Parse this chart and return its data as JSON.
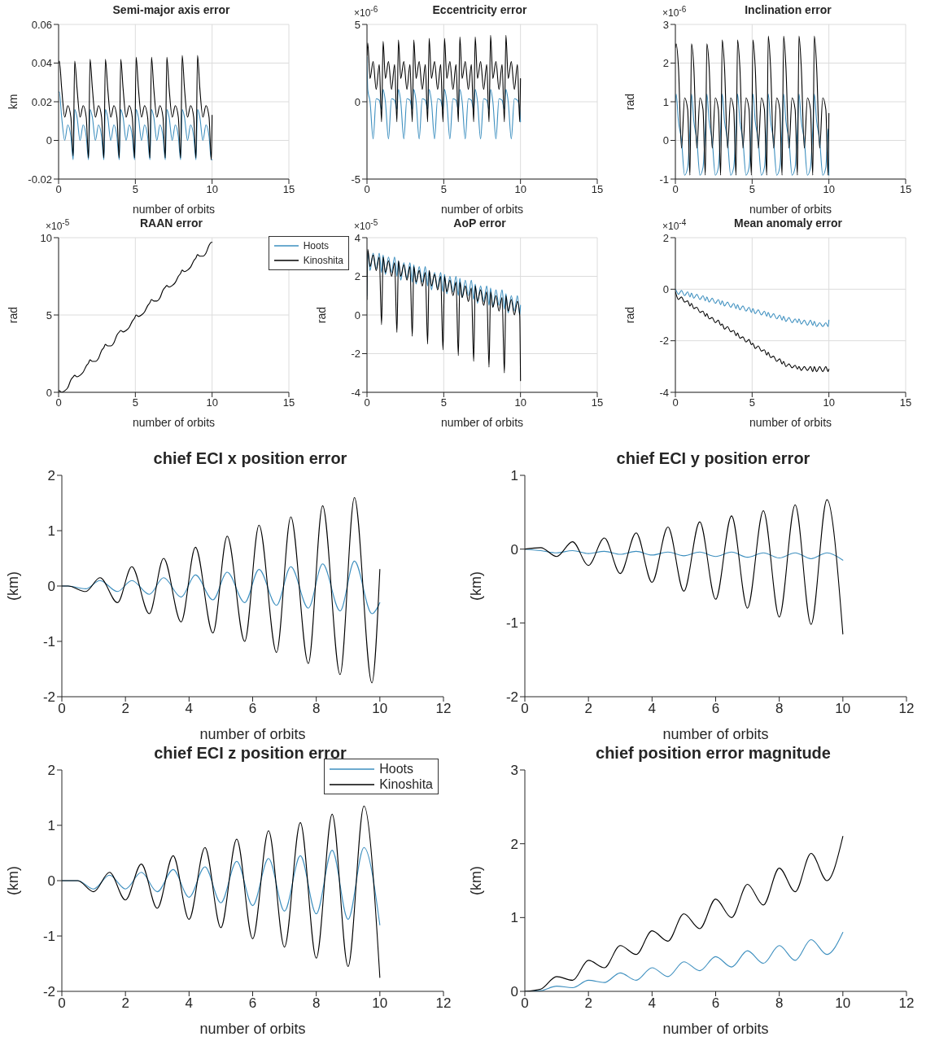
{
  "chart_data": [
    {
      "type": "line",
      "title": "Semi-major axis error",
      "xlabel": "number of orbits",
      "ylabel": "km",
      "xlim": [
        0,
        15
      ],
      "xticks": [
        0,
        5,
        10,
        15
      ],
      "ylim": [
        -0.02,
        0.06
      ],
      "yticks": [
        -0.02,
        0,
        0.02,
        0.04,
        0.06
      ],
      "grid": true,
      "x": [
        0,
        0.05,
        0.2,
        0.4,
        0.6,
        0.8,
        0.95,
        1.05,
        1.2,
        1.4,
        1.6,
        1.8,
        1.95,
        2.05,
        2.2,
        2.4,
        2.6,
        2.8,
        2.95,
        3.05,
        3.2,
        3.4,
        3.6,
        3.8,
        3.95,
        4.05,
        4.2,
        4.4,
        4.6,
        4.8,
        4.95,
        5.05,
        5.2,
        5.4,
        5.6,
        5.8,
        5.95,
        6.05,
        6.2,
        6.4,
        6.6,
        6.8,
        6.95,
        7.05,
        7.2,
        7.4,
        7.6,
        7.8,
        7.95,
        8.05,
        8.2,
        8.4,
        8.6,
        8.8,
        8.95,
        9.05,
        9.2,
        9.4,
        9.6,
        9.8,
        9.95,
        10
      ],
      "series": [
        {
          "color": "#3d8fbf",
          "values": [
            0.025,
            0.025,
            0.012,
            0,
            0.008,
            0.002,
            -0.01,
            0.016,
            0.012,
            0,
            0.008,
            0.002,
            -0.01,
            0.016,
            0.012,
            0,
            0.008,
            0.002,
            -0.01,
            0.016,
            0.012,
            0,
            0.008,
            0.002,
            -0.01,
            0.016,
            0.012,
            0,
            0.008,
            0.002,
            -0.01,
            0.016,
            0.012,
            0,
            0.008,
            0.002,
            -0.01,
            0.016,
            0.012,
            0,
            0.008,
            0.002,
            -0.01,
            0.016,
            0.012,
            0,
            0.008,
            0.002,
            -0.01,
            0.016,
            0.012,
            0,
            0.008,
            0.002,
            -0.01,
            0.016,
            0.012,
            0,
            0.008,
            0.002,
            -0.01,
            -0.01
          ]
        },
        {
          "color": "#000000",
          "values": [
            0.04,
            0.041,
            0.027,
            0.012,
            0.018,
            0.012,
            -0.008,
            0.041,
            0.027,
            0.012,
            0.018,
            0.012,
            -0.009,
            0.042,
            0.027,
            0.012,
            0.018,
            0.012,
            -0.009,
            0.042,
            0.027,
            0.012,
            0.018,
            0.012,
            -0.009,
            0.042,
            0.027,
            0.012,
            0.018,
            0.012,
            -0.009,
            0.043,
            0.027,
            0.012,
            0.018,
            0.012,
            -0.009,
            0.043,
            0.027,
            0.012,
            0.018,
            0.012,
            -0.009,
            0.043,
            0.027,
            0.012,
            0.018,
            0.012,
            -0.009,
            0.044,
            0.027,
            0.012,
            0.018,
            0.012,
            -0.009,
            0.044,
            0.027,
            0.012,
            0.018,
            0.012,
            -0.01,
            0.013
          ]
        }
      ]
    },
    {
      "type": "line",
      "title": "Eccentricity error",
      "xlabel": "number of orbits",
      "annotations": [
        "×10$^{-6}$"
      ],
      "xlim": [
        0,
        15
      ],
      "xticks": [
        0,
        5,
        10,
        15
      ],
      "ylim": [
        -5,
        5
      ],
      "yticks": [
        -5,
        0,
        5
      ],
      "grid": true,
      "x": [
        0,
        0.05,
        0.2,
        0.4,
        0.6,
        0.8,
        0.95,
        1.05,
        1.2,
        1.4,
        1.6,
        1.8,
        1.95,
        2.05,
        2.2,
        2.4,
        2.6,
        2.8,
        2.95,
        3.05,
        3.2,
        3.4,
        3.6,
        3.8,
        3.95,
        4.05,
        4.2,
        4.4,
        4.6,
        4.8,
        4.95,
        5.05,
        5.2,
        5.4,
        5.6,
        5.8,
        5.95,
        6.05,
        6.2,
        6.4,
        6.6,
        6.8,
        6.95,
        7.05,
        7.2,
        7.4,
        7.6,
        7.8,
        7.95,
        8.05,
        8.2,
        8.4,
        8.6,
        8.8,
        8.95,
        9.05,
        9.2,
        9.4,
        9.6,
        9.8,
        9.95,
        10
      ],
      "series": [
        {
          "color": "#3d8fbf",
          "values": [
            2.9,
            0.8,
            0,
            -2.4,
            0.2,
            0.1,
            -0.5,
            0.8,
            0,
            -2.4,
            0.2,
            0.1,
            -0.5,
            0.8,
            0,
            -2.4,
            0.2,
            0.1,
            -0.5,
            0.8,
            0,
            -2.4,
            0.2,
            0.1,
            -0.5,
            0.8,
            0,
            -2.4,
            0.2,
            0.1,
            -0.5,
            0.8,
            0,
            -2.4,
            0.2,
            0.1,
            -0.5,
            0.8,
            0,
            -2.4,
            0.2,
            0.1,
            -0.5,
            0.8,
            0,
            -2.4,
            0.2,
            0.1,
            -0.5,
            0.8,
            0,
            -2.4,
            0.2,
            0.1,
            -0.5,
            0.8,
            0,
            -2.4,
            0.2,
            0.1,
            -0.5,
            -1.3
          ]
        },
        {
          "color": "#000000",
          "values": [
            3,
            3.8,
            1.5,
            2.6,
            0.8,
            2.4,
            -1.3,
            3.9,
            1.5,
            2.6,
            0.8,
            2.4,
            -1.3,
            4,
            1.5,
            2.6,
            0.8,
            2.4,
            -1.3,
            4,
            1.5,
            2.6,
            0.8,
            2.4,
            -1.3,
            4.1,
            1.5,
            2.6,
            0.8,
            2.4,
            -1.3,
            4.1,
            1.5,
            2.6,
            0.8,
            2.4,
            -1.3,
            4.2,
            1.5,
            2.6,
            0.8,
            2.4,
            -1.3,
            4.2,
            1.5,
            2.6,
            0.8,
            2.4,
            -1.3,
            4.3,
            1.5,
            2.6,
            0.8,
            2.4,
            -1.3,
            4.3,
            1.5,
            2.6,
            0.8,
            2.4,
            -1.3,
            1.5
          ]
        }
      ]
    },
    {
      "type": "line",
      "title": "Inclination error",
      "xlabel": "number of orbits",
      "ylabel": "rad",
      "annotations": [
        "×10$^{-6}$"
      ],
      "xlim": [
        0,
        15
      ],
      "xticks": [
        0,
        5,
        10,
        15
      ],
      "ylim": [
        -1,
        3
      ],
      "yticks": [
        -1,
        0,
        1,
        2,
        3
      ],
      "grid": true,
      "x": [
        0,
        0.05,
        0.2,
        0.4,
        0.6,
        0.8,
        0.95,
        1.05,
        1.2,
        1.4,
        1.6,
        1.8,
        1.95,
        2.05,
        2.2,
        2.4,
        2.6,
        2.8,
        2.95,
        3.05,
        3.2,
        3.4,
        3.6,
        3.8,
        3.95,
        4.05,
        4.2,
        4.4,
        4.6,
        4.8,
        4.95,
        5.05,
        5.2,
        5.4,
        5.6,
        5.8,
        5.95,
        6.05,
        6.2,
        6.4,
        6.6,
        6.8,
        6.95,
        7.05,
        7.2,
        7.4,
        7.6,
        7.8,
        7.95,
        8.05,
        8.2,
        8.4,
        8.6,
        8.8,
        8.95,
        9.05,
        9.2,
        9.4,
        9.6,
        9.8,
        9.95,
        10
      ],
      "series": [
        {
          "color": "#3d8fbf",
          "values": [
            1,
            1.2,
            0.5,
            0,
            -0.9,
            -0.7,
            0.3,
            1.2,
            0.5,
            0,
            -0.9,
            -0.7,
            0.3,
            1.2,
            0.5,
            0,
            -0.9,
            -0.7,
            0.3,
            1.2,
            0.5,
            0,
            -0.9,
            -0.7,
            0.3,
            1.2,
            0.5,
            0,
            -0.9,
            -0.7,
            0.3,
            1.2,
            0.5,
            0,
            -0.9,
            -0.7,
            0.3,
            1.2,
            0.5,
            0,
            -0.9,
            -0.7,
            0.3,
            1.2,
            0.5,
            0,
            -0.9,
            -0.7,
            0.3,
            1.2,
            0.5,
            0,
            -0.9,
            -0.7,
            0.3,
            1.2,
            0.5,
            0,
            -0.9,
            -0.7,
            0.3,
            -0.9
          ]
        },
        {
          "color": "#000000",
          "values": [
            2.4,
            2.5,
            1.9,
            -0.2,
            1.1,
            0.8,
            -0.9,
            2.5,
            1.9,
            -0.2,
            1.1,
            0.8,
            -0.9,
            2.5,
            1.9,
            -0.2,
            1.1,
            0.8,
            -0.9,
            2.6,
            1.9,
            -0.2,
            1.1,
            0.8,
            -0.9,
            2.6,
            1.9,
            -0.2,
            1.1,
            0.8,
            -0.9,
            2.6,
            1.9,
            -0.2,
            1.1,
            0.8,
            -0.9,
            2.7,
            1.9,
            -0.2,
            1.1,
            0.8,
            -0.9,
            2.7,
            1.9,
            -0.2,
            1.1,
            0.8,
            -0.9,
            2.7,
            1.9,
            -0.2,
            1.1,
            0.8,
            -0.9,
            2.7,
            1.9,
            -0.2,
            1.1,
            0.8,
            -0.9,
            0.7
          ]
        }
      ]
    },
    {
      "type": "line",
      "title": "RAAN error",
      "xlabel": "number of orbits",
      "ylabel": "rad",
      "annotations": [
        "×10$^{-5}$"
      ],
      "xlim": [
        0,
        15
      ],
      "xticks": [
        0,
        5,
        10,
        15
      ],
      "ylim": [
        0,
        10
      ],
      "yticks": [
        0,
        5,
        10
      ],
      "grid": true,
      "legend": "top right",
      "x": [
        0,
        0.05,
        0.2,
        0.4,
        0.6,
        0.8,
        0.95,
        1.05,
        1.2,
        1.4,
        1.6,
        1.8,
        1.95,
        2.05,
        2.2,
        2.4,
        2.6,
        2.8,
        2.95,
        3.05,
        3.2,
        3.4,
        3.6,
        3.8,
        3.95,
        4.05,
        4.2,
        4.4,
        4.6,
        4.8,
        4.95,
        5.05,
        5.2,
        5.4,
        5.6,
        5.8,
        5.95,
        6.05,
        6.2,
        6.4,
        6.6,
        6.8,
        6.95,
        7.05,
        7.2,
        7.4,
        7.6,
        7.8,
        7.95,
        8.05,
        8.2,
        8.4,
        8.6,
        8.8,
        8.95,
        9.05,
        9.2,
        9.4,
        9.6,
        9.8,
        9.95,
        10
      ],
      "series": [
        {
          "name": "Hoots",
          "color": "#3d8fbf",
          "values": [
            null,
            null,
            null,
            null,
            null,
            null,
            null,
            null,
            null,
            null,
            null,
            null,
            null,
            null,
            null,
            null,
            null,
            null,
            null,
            null,
            null,
            null,
            null,
            null,
            null,
            null,
            null,
            null,
            null,
            null,
            null,
            null,
            null,
            null,
            null,
            null,
            null,
            null,
            null,
            null,
            null,
            null,
            null,
            null,
            null,
            null,
            null,
            null,
            null,
            null,
            null,
            null,
            null,
            null,
            null,
            null,
            null,
            null,
            null,
            null,
            null,
            null
          ]
        },
        {
          "name": "Kinoshita",
          "color": "#000000",
          "values": [
            0.1,
            0.1,
            0,
            0.1,
            0.3,
            0.8,
            1,
            1.1,
            1,
            1.1,
            1.3,
            1.7,
            1.9,
            2.1,
            2,
            2,
            2.2,
            2.7,
            2.9,
            3.1,
            3,
            3,
            3.2,
            3.7,
            3.9,
            4,
            3.9,
            4,
            4.2,
            4.6,
            4.8,
            5,
            4.9,
            5,
            5.2,
            5.6,
            5.8,
            6,
            5.9,
            5.9,
            6.1,
            6.6,
            6.8,
            6.9,
            6.8,
            6.9,
            7.1,
            7.5,
            7.7,
            7.9,
            7.8,
            7.9,
            8.1,
            8.5,
            8.7,
            8.9,
            8.8,
            8.8,
            9,
            9.5,
            9.7,
            9.7
          ]
        }
      ]
    },
    {
      "type": "line",
      "title": "AoP error",
      "xlabel": "number of orbits",
      "ylabel": "rad",
      "annotations": [
        "×10$^{-5}$"
      ],
      "xlim": [
        0,
        15
      ],
      "xticks": [
        0,
        5,
        10,
        15
      ],
      "ylim": [
        -4,
        4
      ],
      "yticks": [
        -4,
        -2,
        0,
        2,
        4
      ],
      "grid": true,
      "x": [
        0,
        0.05,
        0.2,
        0.4,
        0.6,
        0.8,
        0.95,
        1.05,
        1.2,
        1.4,
        1.6,
        1.8,
        1.95,
        2.05,
        2.2,
        2.4,
        2.6,
        2.8,
        2.95,
        3.05,
        3.2,
        3.4,
        3.6,
        3.8,
        3.95,
        4.05,
        4.2,
        4.4,
        4.6,
        4.8,
        4.95,
        5.05,
        5.2,
        5.4,
        5.6,
        5.8,
        5.95,
        6.05,
        6.2,
        6.4,
        6.6,
        6.8,
        6.95,
        7.05,
        7.2,
        7.4,
        7.6,
        7.8,
        7.95,
        8.05,
        8.2,
        8.4,
        8.6,
        8.8,
        8.95,
        9.05,
        9.2,
        9.4,
        9.6,
        9.8,
        9.95,
        10
      ],
      "series": [
        {
          "color": "#3d8fbf",
          "values": [
            1,
            3.3,
            2.3,
            3.2,
            2.4,
            3.2,
            2.2,
            3.1,
            2.1,
            3,
            2.2,
            3,
            2,
            2.8,
            1.8,
            2.7,
            1.9,
            2.7,
            1.7,
            2.6,
            1.6,
            2.5,
            1.7,
            2.5,
            1.5,
            2.3,
            1.3,
            2.2,
            1.4,
            2.2,
            1.2,
            2.1,
            1.1,
            2,
            1.2,
            2,
            1,
            1.9,
            0.9,
            1.8,
            1,
            1.8,
            0.8,
            1.6,
            0.6,
            1.5,
            0.7,
            1.5,
            0.5,
            1.4,
            0.4,
            1.3,
            0.5,
            1.3,
            0.3,
            1.1,
            0.1,
            1,
            0.2,
            1,
            0,
            0.5
          ]
        },
        {
          "color": "#000000",
          "values": [
            0.8,
            3.4,
            2.5,
            3.1,
            2.3,
            3,
            -0.5,
            3,
            2.2,
            2.8,
            2,
            2.7,
            -0.9,
            2.8,
            2,
            2.6,
            1.8,
            2.5,
            -1.1,
            2.5,
            1.7,
            2.3,
            1.5,
            2.2,
            -1.5,
            2.3,
            1.5,
            2.1,
            1.3,
            2,
            -1.8,
            2,
            1.2,
            1.8,
            1,
            1.7,
            -2.1,
            1.7,
            0.9,
            1.5,
            0.7,
            1.4,
            -2.4,
            1.5,
            0.7,
            1.3,
            0.5,
            1.2,
            -2.7,
            1.2,
            0.4,
            1,
            0.2,
            0.9,
            -3,
            1,
            0.2,
            0.8,
            0,
            0.7,
            0,
            -3.4
          ]
        }
      ]
    },
    {
      "type": "line",
      "title": "Mean anomaly error",
      "xlabel": "number of orbits",
      "ylabel": "rad",
      "annotations": [
        "×10$^{-4}$"
      ],
      "xlim": [
        0,
        15
      ],
      "xticks": [
        0,
        5,
        10,
        15
      ],
      "ylim": [
        -4,
        2
      ],
      "yticks": [
        -4,
        -2,
        0,
        2
      ],
      "grid": true,
      "x": [
        0,
        0.05,
        0.2,
        0.4,
        0.6,
        0.8,
        0.95,
        1.05,
        1.2,
        1.4,
        1.6,
        1.8,
        1.95,
        2.05,
        2.2,
        2.4,
        2.6,
        2.8,
        2.95,
        3.05,
        3.2,
        3.4,
        3.6,
        3.8,
        3.95,
        4.05,
        4.2,
        4.4,
        4.6,
        4.8,
        4.95,
        5.05,
        5.2,
        5.4,
        5.6,
        5.8,
        5.95,
        6.05,
        6.2,
        6.4,
        6.6,
        6.8,
        6.95,
        7.05,
        7.2,
        7.4,
        7.6,
        7.8,
        7.95,
        8.05,
        8.2,
        8.4,
        8.6,
        8.8,
        8.95,
        9.05,
        9.2,
        9.4,
        9.6,
        9.8,
        9.95,
        10
      ],
      "series": [
        {
          "color": "#3d8fbf",
          "values": [
            0,
            -0.05,
            -0.2,
            -0.05,
            -0.25,
            -0.1,
            -0.3,
            -0.15,
            -0.35,
            -0.2,
            -0.4,
            -0.25,
            -0.45,
            -0.3,
            -0.5,
            -0.35,
            -0.55,
            -0.4,
            -0.6,
            -0.45,
            -0.65,
            -0.5,
            -0.7,
            -0.55,
            -0.75,
            -0.6,
            -0.8,
            -0.65,
            -0.85,
            -0.7,
            -0.9,
            -0.75,
            -0.95,
            -0.8,
            -1,
            -0.85,
            -1.05,
            -0.9,
            -1.1,
            -0.95,
            -1.15,
            -1,
            -1.2,
            -1.05,
            -1.25,
            -1.1,
            -1.3,
            -1.15,
            -1.3,
            -1.15,
            -1.35,
            -1.2,
            -1.4,
            -1.2,
            -1.4,
            -1.25,
            -1.45,
            -1.3,
            -1.45,
            -1.3,
            -1.45,
            -1.2
          ]
        },
        {
          "color": "#000000",
          "values": [
            -0.1,
            -0.2,
            -0.4,
            -0.3,
            -0.5,
            -0.45,
            -0.65,
            -0.55,
            -0.75,
            -0.7,
            -0.9,
            -0.85,
            -1.05,
            -0.95,
            -1.15,
            -1.1,
            -1.3,
            -1.2,
            -1.4,
            -1.35,
            -1.55,
            -1.45,
            -1.65,
            -1.6,
            -1.8,
            -1.7,
            -1.9,
            -1.85,
            -2.05,
            -1.95,
            -2.15,
            -2.1,
            -2.3,
            -2.2,
            -2.4,
            -2.35,
            -2.55,
            -2.45,
            -2.65,
            -2.6,
            -2.8,
            -2.7,
            -2.9,
            -2.8,
            -3,
            -2.9,
            -3.05,
            -2.95,
            -3.1,
            -3,
            -3.15,
            -3,
            -3.15,
            -3,
            -3.2,
            -3,
            -3.2,
            -3,
            -3.2,
            -3,
            -3.2,
            -3.1
          ]
        }
      ]
    },
    {
      "type": "line",
      "title": "chief ECI x position error",
      "xlabel": "number of orbits",
      "ylabel": "(km)",
      "xlim": [
        0,
        12
      ],
      "xticks": [
        0,
        2,
        4,
        6,
        8,
        10,
        12
      ],
      "ylim": [
        -2,
        2
      ],
      "yticks": [
        -2,
        -1,
        0,
        1,
        2
      ],
      "x": [
        0,
        0.2,
        0.75,
        1.2,
        1.75,
        2.2,
        2.75,
        3.2,
        3.75,
        4.2,
        4.75,
        5.2,
        5.75,
        6.2,
        6.75,
        7.2,
        7.75,
        8.2,
        8.75,
        9.2,
        9.75,
        10
      ],
      "series": [
        {
          "color": "#3d8fbf",
          "values": [
            0,
            0,
            -0.05,
            0.1,
            -0.1,
            0.1,
            -0.15,
            0.15,
            -0.2,
            0.2,
            -0.25,
            0.25,
            -0.3,
            0.3,
            -0.35,
            0.35,
            -0.4,
            0.4,
            -0.45,
            0.45,
            -0.5,
            -0.3
          ]
        },
        {
          "color": "#000000",
          "values": [
            0,
            0,
            -0.1,
            0.15,
            -0.3,
            0.35,
            -0.5,
            0.5,
            -0.65,
            0.7,
            -0.85,
            0.9,
            -1,
            1.1,
            -1.2,
            1.25,
            -1.4,
            1.45,
            -1.6,
            1.6,
            -1.75,
            0.3
          ]
        }
      ]
    },
    {
      "type": "line",
      "title": "chief ECI y position error",
      "xlabel": "number of orbits",
      "ylabel": "(km)",
      "xlim": [
        0,
        12
      ],
      "xticks": [
        0,
        2,
        4,
        6,
        8,
        10,
        12
      ],
      "ylim": [
        -2,
        1
      ],
      "yticks": [
        -2,
        -1,
        0,
        1
      ],
      "x": [
        0,
        0.5,
        1,
        1.5,
        2,
        2.5,
        3,
        3.5,
        4,
        4.5,
        5,
        5.5,
        6,
        6.5,
        7,
        7.5,
        8,
        8.5,
        9,
        9.5,
        10
      ],
      "series": [
        {
          "color": "#3d8fbf",
          "values": [
            0,
            -0.02,
            -0.05,
            -0.02,
            -0.06,
            -0.03,
            -0.07,
            -0.03,
            -0.08,
            -0.04,
            -0.09,
            -0.04,
            -0.1,
            -0.04,
            -0.11,
            -0.05,
            -0.12,
            -0.05,
            -0.13,
            -0.05,
            -0.15
          ]
        },
        {
          "color": "#000000",
          "values": [
            0,
            0.02,
            -0.1,
            0.1,
            -0.22,
            0.15,
            -0.33,
            0.22,
            -0.45,
            0.3,
            -0.57,
            0.37,
            -0.68,
            0.45,
            -0.8,
            0.52,
            -0.92,
            0.6,
            -1.02,
            0.67,
            -1.15
          ]
        }
      ]
    },
    {
      "type": "line",
      "title": "chief ECI z position error",
      "xlabel": "number of orbits",
      "ylabel": "(km)",
      "xlim": [
        0,
        12
      ],
      "xticks": [
        0,
        2,
        4,
        6,
        8,
        10,
        12
      ],
      "ylim": [
        -2,
        2
      ],
      "yticks": [
        -2,
        -1,
        0,
        1,
        2
      ],
      "legend": "top right",
      "x": [
        0,
        0.5,
        1,
        1.5,
        2,
        2.5,
        3,
        3.5,
        4,
        4.5,
        5,
        5.5,
        6,
        6.5,
        7,
        7.5,
        8,
        8.5,
        9,
        9.5,
        10
      ],
      "series": [
        {
          "name": "Hoots",
          "color": "#3d8fbf",
          "values": [
            0,
            0,
            -0.15,
            0.1,
            -0.15,
            0.15,
            -0.2,
            0.2,
            -0.3,
            0.25,
            -0.4,
            0.35,
            -0.45,
            0.4,
            -0.55,
            0.45,
            -0.6,
            0.55,
            -0.7,
            0.6,
            -0.8
          ]
        },
        {
          "name": "Kinoshita",
          "color": "#000000",
          "values": [
            0,
            0,
            -0.2,
            0.15,
            -0.35,
            0.3,
            -0.5,
            0.45,
            -0.7,
            0.6,
            -0.85,
            0.75,
            -1.05,
            0.9,
            -1.2,
            1.05,
            -1.4,
            1.2,
            -1.55,
            1.35,
            -1.75
          ]
        }
      ]
    },
    {
      "type": "line",
      "title": "chief position error magnitude",
      "xlabel": "number of orbits",
      "ylabel": "(km)",
      "xlim": [
        0,
        12
      ],
      "xticks": [
        0,
        2,
        4,
        6,
        8,
        10,
        12
      ],
      "ylim": [
        0,
        3
      ],
      "yticks": [
        0,
        1,
        2,
        3
      ],
      "x": [
        0,
        0.5,
        1,
        1.5,
        2,
        2.5,
        3,
        3.5,
        4,
        4.5,
        5,
        5.5,
        6,
        6.5,
        7,
        7.5,
        8,
        8.5,
        9,
        9.5,
        10
      ],
      "series": [
        {
          "color": "#3d8fbf",
          "values": [
            0,
            0.01,
            0.07,
            0.05,
            0.15,
            0.12,
            0.25,
            0.15,
            0.32,
            0.2,
            0.4,
            0.28,
            0.47,
            0.33,
            0.55,
            0.38,
            0.62,
            0.42,
            0.7,
            0.5,
            0.8
          ]
        },
        {
          "color": "#000000",
          "values": [
            0,
            0.03,
            0.2,
            0.15,
            0.42,
            0.32,
            0.62,
            0.5,
            0.82,
            0.68,
            1.05,
            0.85,
            1.25,
            1,
            1.45,
            1.17,
            1.67,
            1.35,
            1.87,
            1.5,
            2.1
          ]
        }
      ]
    }
  ]
}
